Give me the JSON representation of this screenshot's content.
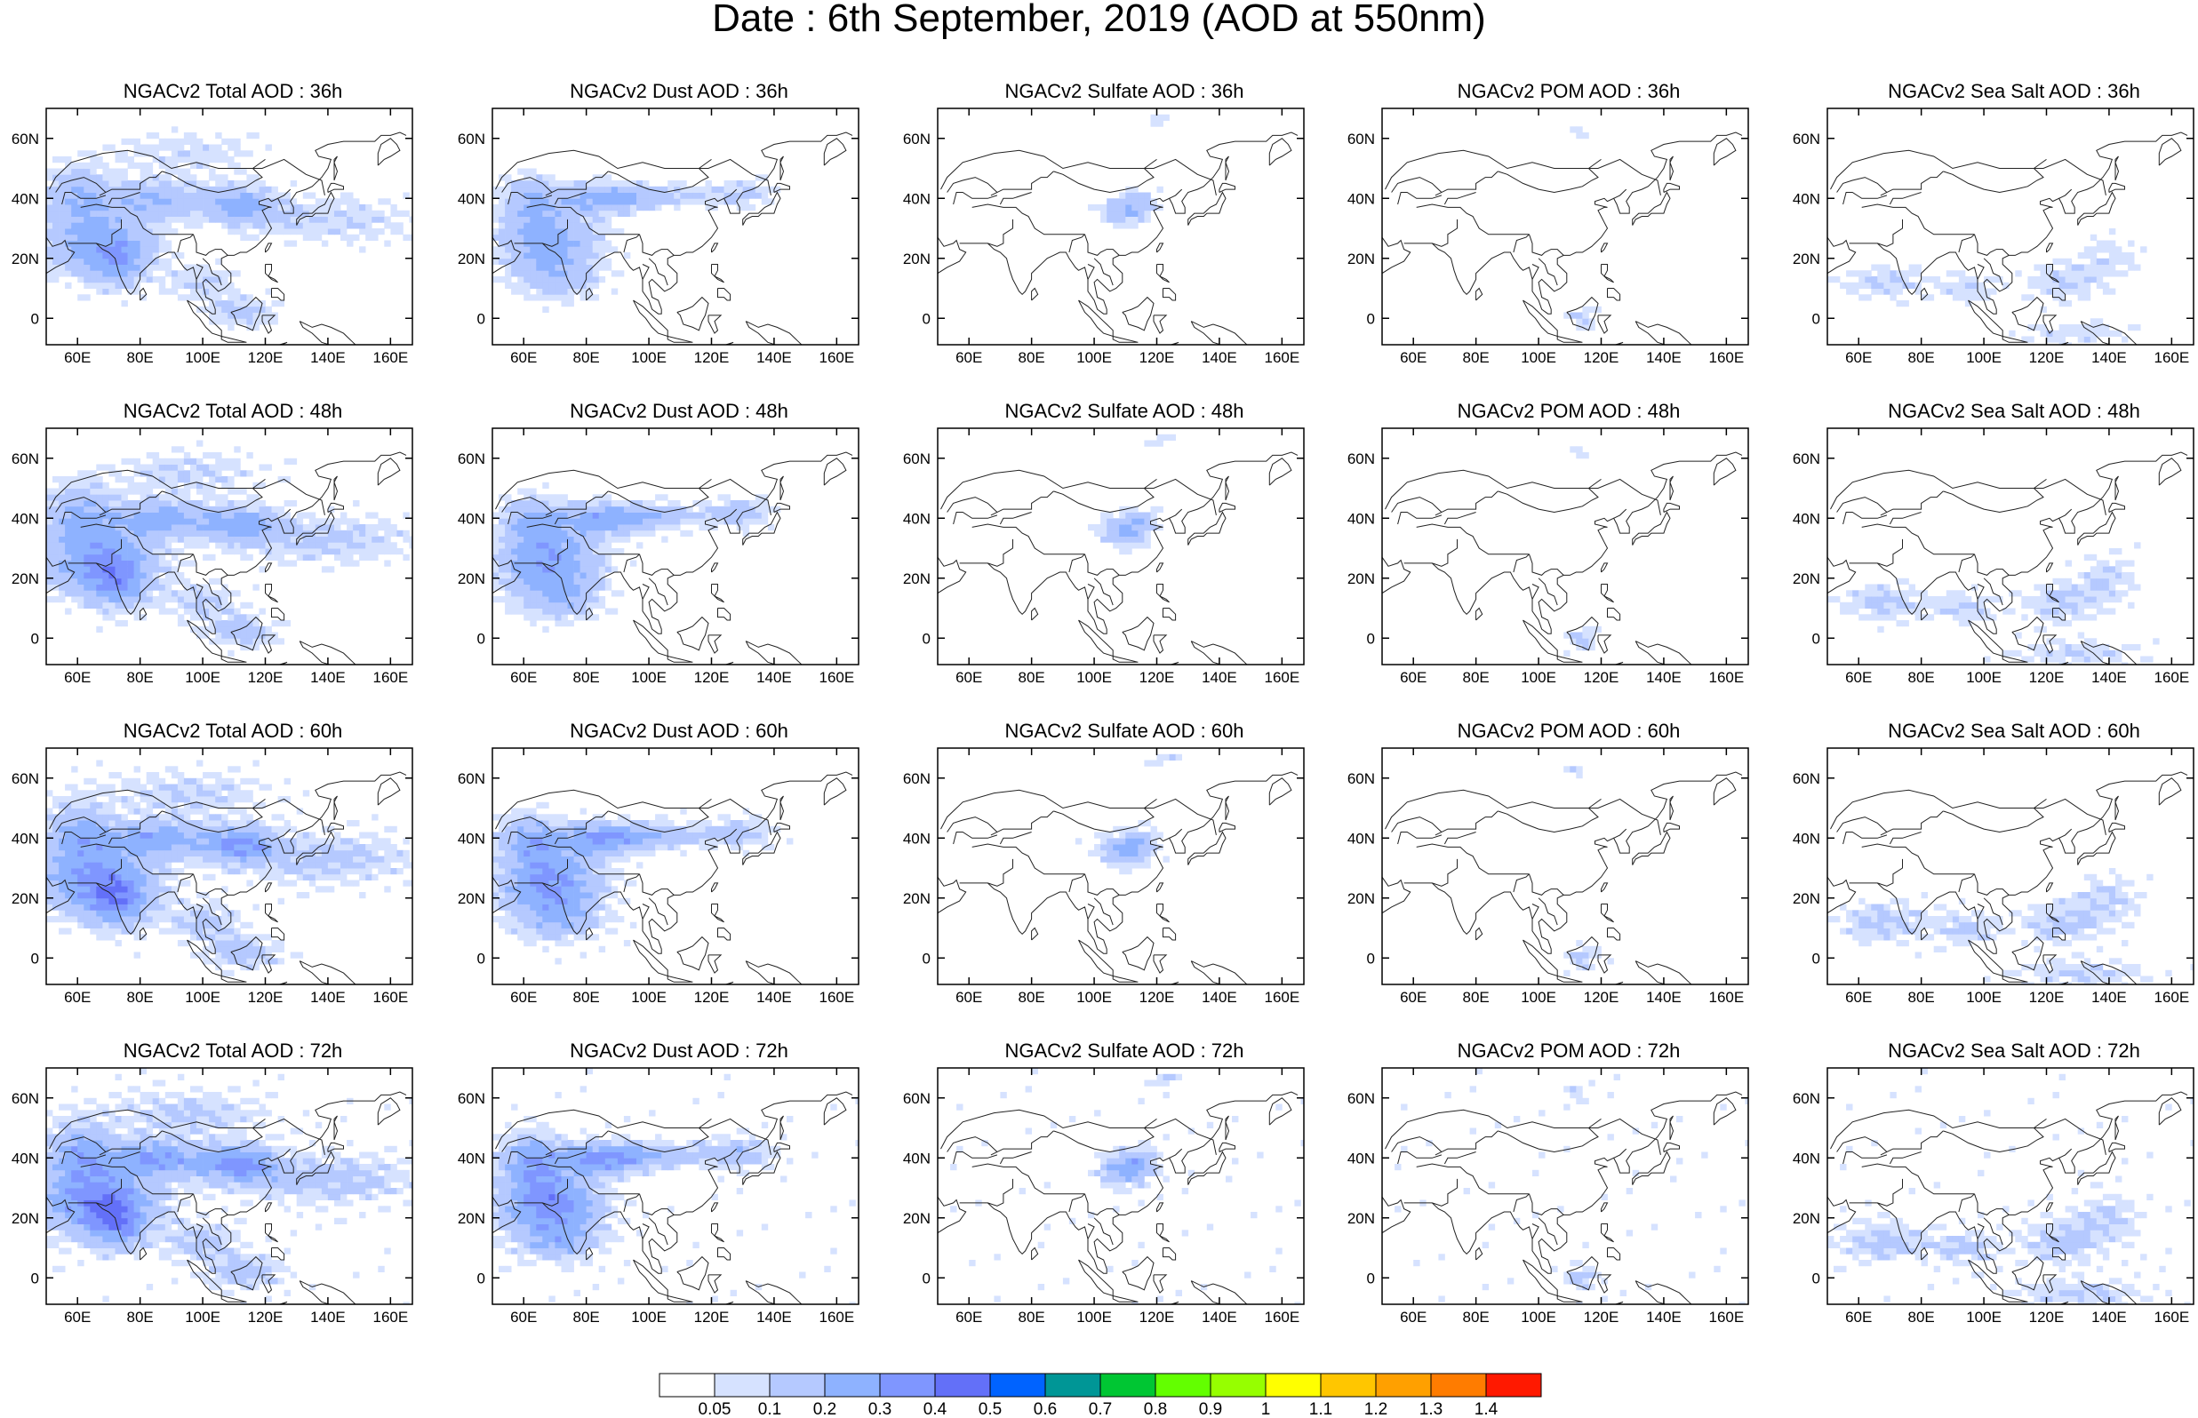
{
  "title": "Date : 6th September, 2019 (AOD at 550nm)",
  "map_axes": {
    "lon_ticks": [
      "60E",
      "80E",
      "100E",
      "120E",
      "140E",
      "160E"
    ],
    "lat_ticks": [
      "60N",
      "40N",
      "20N",
      "0"
    ]
  },
  "panels": [
    {
      "title": "NGACv2 Total AOD : 36h",
      "species": "total",
      "hour": 36
    },
    {
      "title": "NGACv2 Dust AOD : 36h",
      "species": "dust",
      "hour": 36
    },
    {
      "title": "NGACv2 Sulfate AOD : 36h",
      "species": "sulfate",
      "hour": 36
    },
    {
      "title": "NGACv2 POM AOD : 36h",
      "species": "pom",
      "hour": 36
    },
    {
      "title": "NGACv2 Sea Salt AOD : 36h",
      "species": "seasalt",
      "hour": 36
    },
    {
      "title": "NGACv2 Total AOD : 48h",
      "species": "total",
      "hour": 48
    },
    {
      "title": "NGACv2 Dust AOD : 48h",
      "species": "dust",
      "hour": 48
    },
    {
      "title": "NGACv2 Sulfate AOD : 48h",
      "species": "sulfate",
      "hour": 48
    },
    {
      "title": "NGACv2 POM AOD : 48h",
      "species": "pom",
      "hour": 48
    },
    {
      "title": "NGACv2 Sea Salt AOD : 48h",
      "species": "seasalt",
      "hour": 48
    },
    {
      "title": "NGACv2 Total AOD : 60h",
      "species": "total",
      "hour": 60
    },
    {
      "title": "NGACv2 Dust AOD : 60h",
      "species": "dust",
      "hour": 60
    },
    {
      "title": "NGACv2 Sulfate AOD : 60h",
      "species": "sulfate",
      "hour": 60
    },
    {
      "title": "NGACv2 POM AOD : 60h",
      "species": "pom",
      "hour": 60
    },
    {
      "title": "NGACv2 Sea Salt AOD : 60h",
      "species": "seasalt",
      "hour": 60
    },
    {
      "title": "NGACv2 Total AOD : 72h",
      "species": "total",
      "hour": 72
    },
    {
      "title": "NGACv2 Dust AOD : 72h",
      "species": "dust",
      "hour": 72
    },
    {
      "title": "NGACv2 Sulfate AOD : 72h",
      "species": "sulfate",
      "hour": 72
    },
    {
      "title": "NGACv2 POM AOD : 72h",
      "species": "pom",
      "hour": 72
    },
    {
      "title": "NGACv2 Sea Salt  AOD : 72h",
      "species": "seasalt",
      "hour": 72
    }
  ],
  "colorbar": {
    "labels": [
      "0.05",
      "0.1",
      "0.2",
      "0.3",
      "0.4",
      "0.5",
      "0.6",
      "0.7",
      "0.8",
      "0.9",
      "1",
      "1.1",
      "1.2",
      "1.3",
      "1.4"
    ],
    "colors": [
      "#ffffff",
      "#d6e2ff",
      "#b5c9ff",
      "#8eb2ff",
      "#7f96ff",
      "#6370f8",
      "#0063ff",
      "#009696",
      "#00c633",
      "#63ff00",
      "#96ff00",
      "#ffff00",
      "#ffc600",
      "#ffa000",
      "#ff7c00",
      "#ff1900"
    ]
  }
}
